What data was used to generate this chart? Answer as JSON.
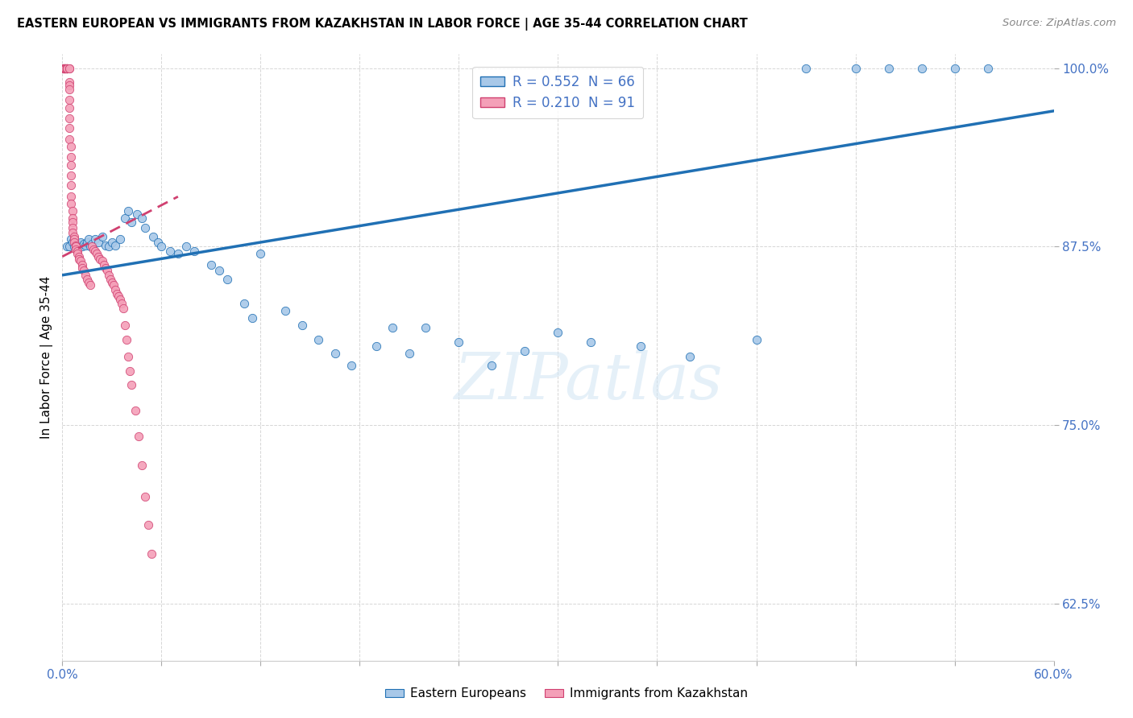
{
  "title": "EASTERN EUROPEAN VS IMMIGRANTS FROM KAZAKHSTAN IN LABOR FORCE | AGE 35-44 CORRELATION CHART",
  "source": "Source: ZipAtlas.com",
  "ylabel": "In Labor Force | Age 35-44",
  "xlim": [
    0.0,
    0.6
  ],
  "ylim": [
    0.585,
    1.01
  ],
  "xticks": [
    0.0,
    0.06,
    0.12,
    0.18,
    0.24,
    0.3,
    0.36,
    0.42,
    0.48,
    0.54,
    0.6
  ],
  "xticklabels": [
    "0.0%",
    "",
    "",
    "",
    "",
    "",
    "",
    "",
    "",
    "",
    "60.0%"
  ],
  "yticks": [
    0.625,
    0.75,
    0.875,
    1.0
  ],
  "yticklabels": [
    "62.5%",
    "75.0%",
    "87.5%",
    "100.0%"
  ],
  "R_blue": 0.552,
  "N_blue": 66,
  "R_pink": 0.21,
  "N_pink": 91,
  "blue_color": "#a8c8e8",
  "pink_color": "#f4a0b8",
  "trend_blue_color": "#2070b4",
  "trend_pink_color": "#d04070",
  "watermark": "ZIPatlas",
  "blue_scatter_x": [
    0.003,
    0.004,
    0.005,
    0.006,
    0.007,
    0.008,
    0.009,
    0.01,
    0.011,
    0.012,
    0.013,
    0.014,
    0.015,
    0.016,
    0.017,
    0.018,
    0.02,
    0.022,
    0.024,
    0.026,
    0.028,
    0.03,
    0.032,
    0.035,
    0.038,
    0.04,
    0.042,
    0.045,
    0.048,
    0.05,
    0.055,
    0.058,
    0.06,
    0.065,
    0.07,
    0.075,
    0.08,
    0.09,
    0.095,
    0.1,
    0.11,
    0.115,
    0.12,
    0.135,
    0.145,
    0.155,
    0.165,
    0.175,
    0.19,
    0.2,
    0.21,
    0.22,
    0.24,
    0.26,
    0.28,
    0.3,
    0.32,
    0.35,
    0.38,
    0.42,
    0.45,
    0.48,
    0.5,
    0.52,
    0.54,
    0.56
  ],
  "blue_scatter_y": [
    0.875,
    0.875,
    0.88,
    0.878,
    0.875,
    0.877,
    0.875,
    0.876,
    0.878,
    0.875,
    0.877,
    0.876,
    0.878,
    0.88,
    0.875,
    0.877,
    0.88,
    0.878,
    0.882,
    0.876,
    0.875,
    0.878,
    0.876,
    0.88,
    0.895,
    0.9,
    0.892,
    0.898,
    0.895,
    0.888,
    0.882,
    0.878,
    0.875,
    0.872,
    0.87,
    0.875,
    0.872,
    0.862,
    0.858,
    0.852,
    0.835,
    0.825,
    0.87,
    0.83,
    0.82,
    0.81,
    0.8,
    0.792,
    0.805,
    0.818,
    0.8,
    0.818,
    0.808,
    0.792,
    0.802,
    0.815,
    0.808,
    0.805,
    0.798,
    0.81,
    1.0,
    1.0,
    1.0,
    1.0,
    1.0,
    1.0
  ],
  "pink_scatter_x": [
    0.001,
    0.001,
    0.001,
    0.001,
    0.001,
    0.001,
    0.001,
    0.002,
    0.002,
    0.002,
    0.002,
    0.002,
    0.002,
    0.003,
    0.003,
    0.003,
    0.003,
    0.003,
    0.003,
    0.003,
    0.004,
    0.004,
    0.004,
    0.004,
    0.004,
    0.004,
    0.004,
    0.004,
    0.004,
    0.004,
    0.005,
    0.005,
    0.005,
    0.005,
    0.005,
    0.005,
    0.005,
    0.006,
    0.006,
    0.006,
    0.006,
    0.006,
    0.007,
    0.007,
    0.007,
    0.008,
    0.008,
    0.008,
    0.009,
    0.009,
    0.01,
    0.01,
    0.011,
    0.012,
    0.012,
    0.013,
    0.014,
    0.015,
    0.016,
    0.017,
    0.018,
    0.019,
    0.02,
    0.021,
    0.022,
    0.023,
    0.024,
    0.025,
    0.026,
    0.027,
    0.028,
    0.029,
    0.03,
    0.031,
    0.032,
    0.033,
    0.034,
    0.035,
    0.036,
    0.037,
    0.038,
    0.039,
    0.04,
    0.041,
    0.042,
    0.044,
    0.046,
    0.048,
    0.05,
    0.052,
    0.054
  ],
  "pink_scatter_y": [
    1.0,
    1.0,
    1.0,
    1.0,
    1.0,
    1.0,
    1.0,
    1.0,
    1.0,
    1.0,
    1.0,
    1.0,
    1.0,
    1.0,
    1.0,
    1.0,
    1.0,
    1.0,
    1.0,
    1.0,
    1.0,
    1.0,
    0.99,
    0.988,
    0.985,
    0.978,
    0.972,
    0.965,
    0.958,
    0.95,
    0.945,
    0.938,
    0.932,
    0.925,
    0.918,
    0.91,
    0.905,
    0.9,
    0.895,
    0.892,
    0.888,
    0.885,
    0.882,
    0.88,
    0.878,
    0.876,
    0.875,
    0.873,
    0.872,
    0.87,
    0.868,
    0.866,
    0.865,
    0.862,
    0.86,
    0.858,
    0.855,
    0.852,
    0.85,
    0.848,
    0.875,
    0.873,
    0.872,
    0.87,
    0.868,
    0.866,
    0.865,
    0.862,
    0.86,
    0.858,
    0.855,
    0.852,
    0.85,
    0.848,
    0.845,
    0.842,
    0.84,
    0.838,
    0.835,
    0.832,
    0.82,
    0.81,
    0.798,
    0.788,
    0.778,
    0.76,
    0.742,
    0.722,
    0.7,
    0.68,
    0.66
  ]
}
